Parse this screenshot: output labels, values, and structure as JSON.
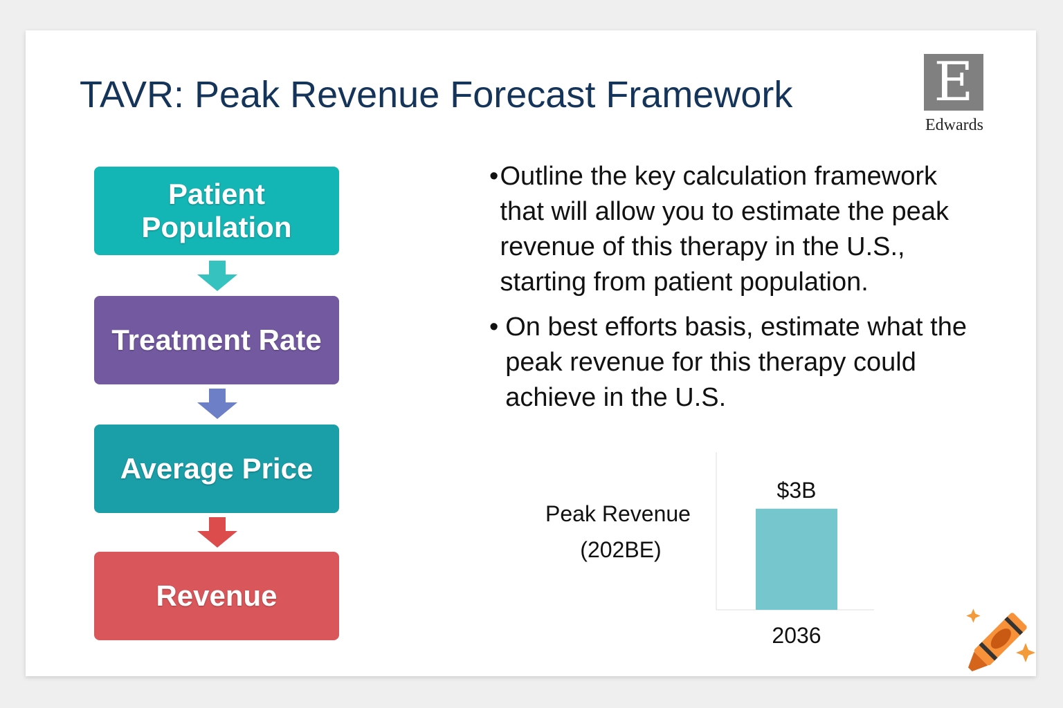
{
  "title": "TAVR: Peak Revenue Forecast Framework",
  "logo": {
    "letter": "E",
    "text": "Edwards"
  },
  "flow": [
    {
      "label": "Patient Population",
      "color": "#14b5b5"
    },
    {
      "label": "Treatment Rate",
      "color": "#7359a0"
    },
    {
      "label": "Average Price",
      "color": "#1a9ea7"
    },
    {
      "label": "Revenue",
      "color": "#d9575b"
    }
  ],
  "arrow_colors": [
    "#36c3c0",
    "#6d7fc6",
    "#dc4c4c"
  ],
  "bullets": [
    "Outline the key calculation framework that will allow you to estimate the peak revenue of this therapy in the U.S., starting from patient population.",
    "On best efforts basis, estimate what the peak revenue for this therapy could achieve in the U.S."
  ],
  "chart_data": {
    "type": "bar",
    "categories": [
      "2036"
    ],
    "values": [
      3
    ],
    "data_labels": [
      "$3B"
    ],
    "ylabel_line1": "Peak Revenue",
    "ylabel_line2": "(202BE)",
    "bar_color": "#76c6ce"
  }
}
